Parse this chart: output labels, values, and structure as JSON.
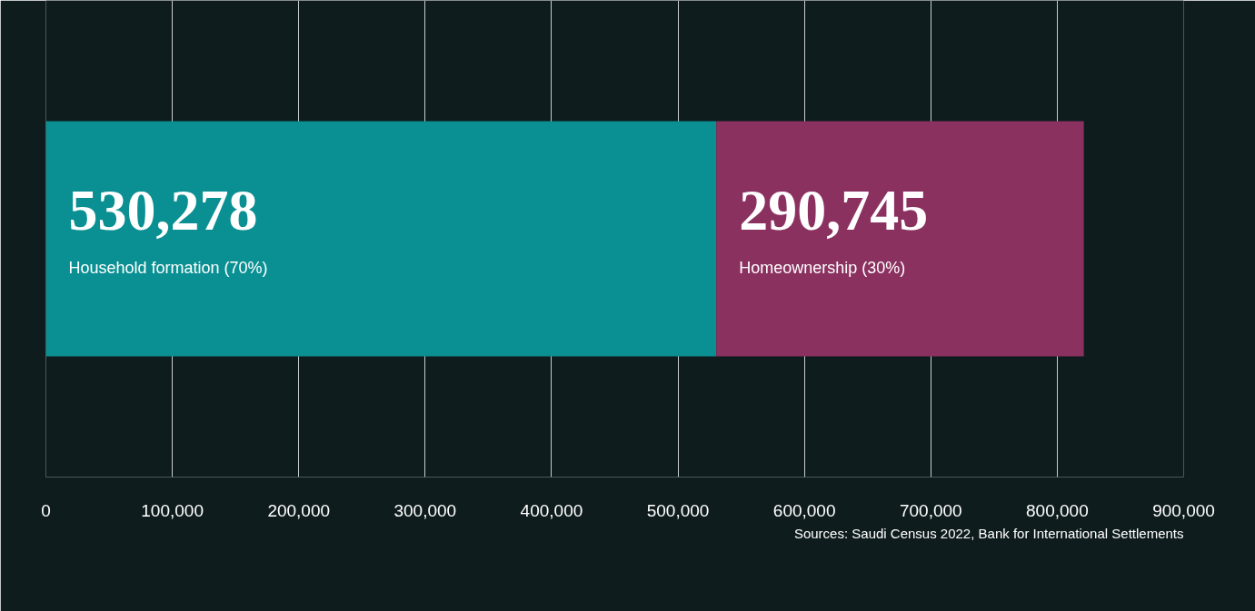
{
  "chart_data": {
    "type": "bar",
    "orientation": "horizontal",
    "stacked": true,
    "categories": [
      null
    ],
    "series": [
      {
        "name": "Household formation (70%)",
        "color": "#0a9093",
        "values": [
          530278
        ],
        "value_labels": [
          "530,278"
        ]
      },
      {
        "name": "Homeownership (30%)",
        "color": "#8b3160",
        "values": [
          290745
        ],
        "value_labels": [
          "290,745"
        ]
      }
    ],
    "xlim": [
      0,
      900000
    ],
    "xticks": [
      {
        "value": 0,
        "label": "0"
      },
      {
        "value": 100000,
        "label": "100,000"
      },
      {
        "value": 200000,
        "label": "200,000"
      },
      {
        "value": 300000,
        "label": "300,000"
      },
      {
        "value": 400000,
        "label": "400,000"
      },
      {
        "value": 500000,
        "label": "500,000"
      },
      {
        "value": 600000,
        "label": "600,000"
      },
      {
        "value": 700000,
        "label": "700,000"
      },
      {
        "value": 800000,
        "label": "800,000"
      },
      {
        "value": 900000,
        "label": "900,000"
      }
    ],
    "grid": "x",
    "annotations": [
      "Sources: Saudi Census 2022, Bank for International Settlements"
    ]
  }
}
